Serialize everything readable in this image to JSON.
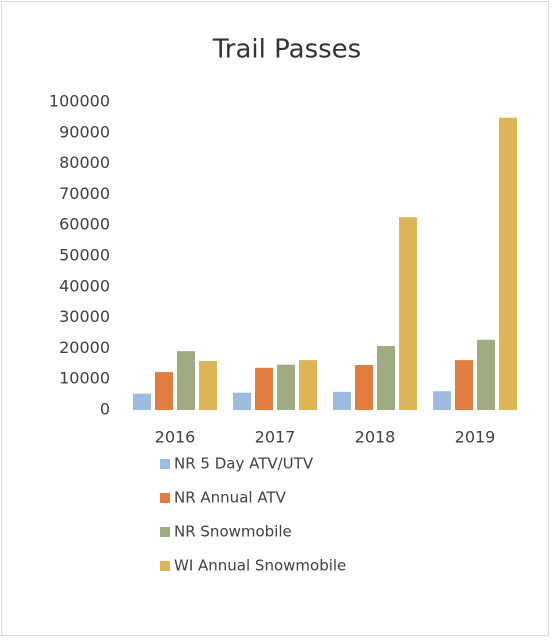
{
  "chart_data": {
    "type": "bar",
    "title": "Trail Passes",
    "categories": [
      "2016",
      "2017",
      "2018",
      "2019"
    ],
    "series": [
      {
        "name": "NR 5 Day ATV/UTV",
        "color": "#9dbbe0",
        "values": [
          5300,
          5600,
          5900,
          6100
        ]
      },
      {
        "name": "NR Annual ATV",
        "color": "#e37c3f",
        "values": [
          12300,
          13700,
          14600,
          16200
        ]
      },
      {
        "name": "NR Snowmobile",
        "color": "#9fac82",
        "values": [
          19100,
          14700,
          20800,
          22800
        ]
      },
      {
        "name": "WI Annual Snowmobile",
        "color": "#dcb556",
        "values": [
          15900,
          16200,
          62600,
          94900
        ]
      }
    ],
    "ylim": [
      0,
      100000
    ],
    "yticks": [
      0,
      10000,
      20000,
      30000,
      40000,
      50000,
      60000,
      70000,
      80000,
      90000,
      100000
    ],
    "grid": false,
    "legend": "bottom"
  }
}
